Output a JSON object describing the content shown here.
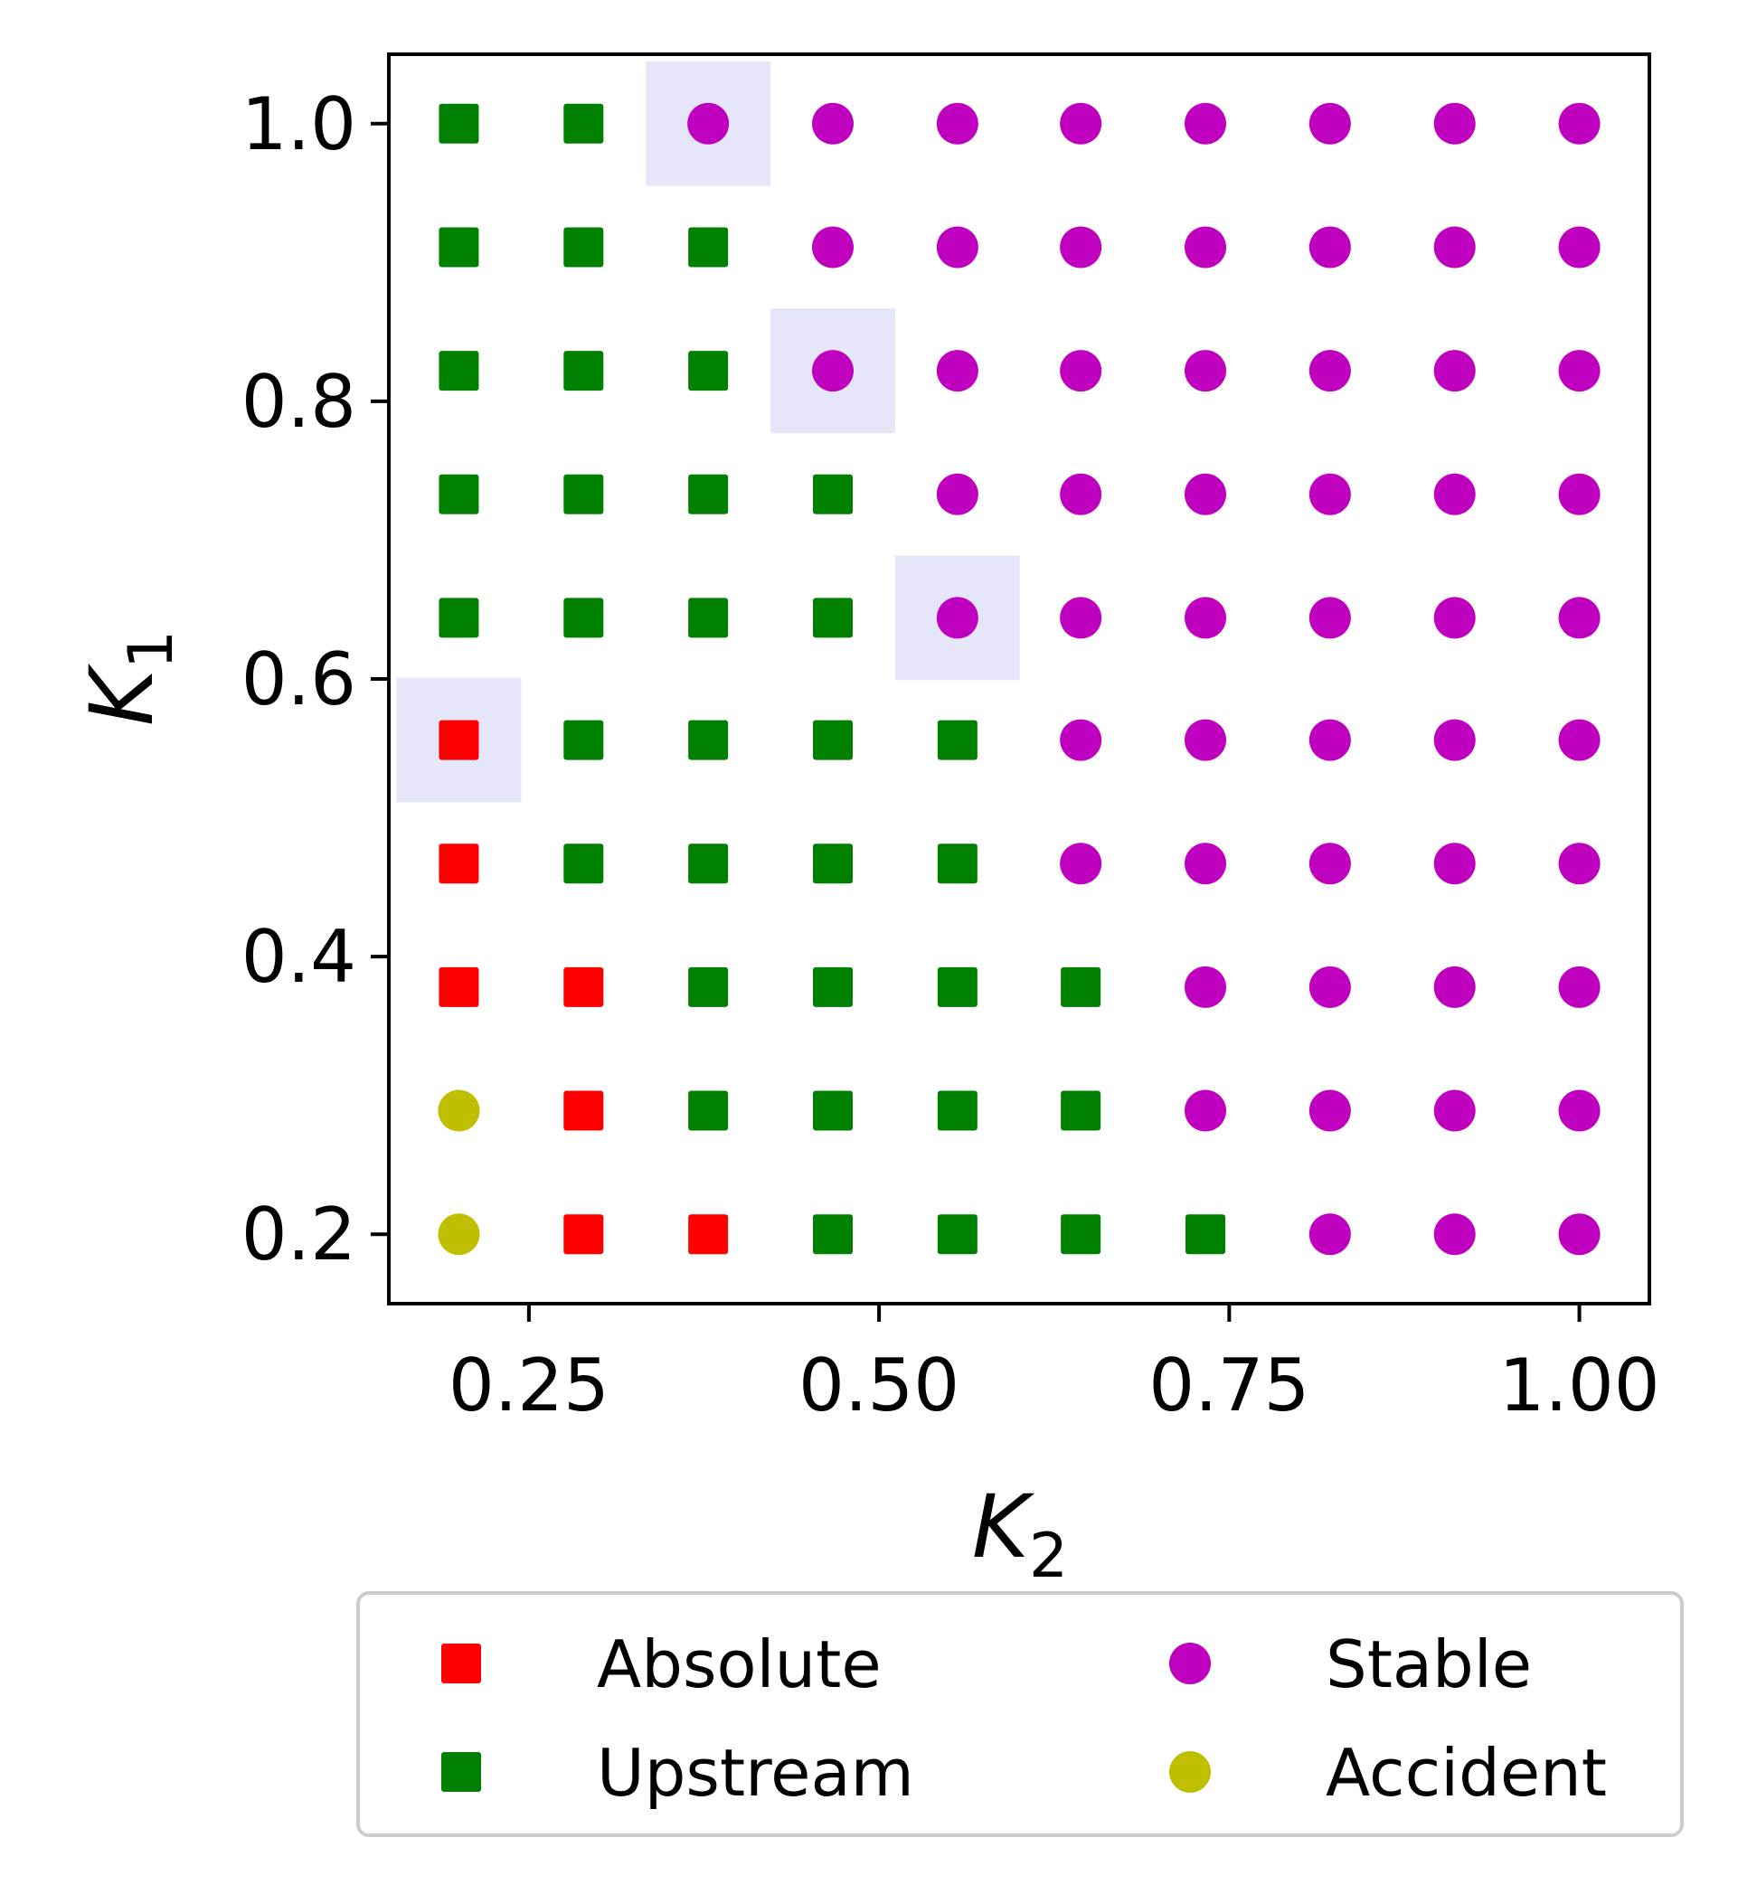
{
  "chart_data": {
    "type": "scatter",
    "xlabel": {
      "main": "K",
      "sub": "2"
    },
    "ylabel": {
      "main": "K",
      "sub": "1"
    },
    "xlim": [
      0.15,
      1.05
    ],
    "ylim": [
      0.15,
      1.05
    ],
    "xticks": [
      0.25,
      0.5,
      0.75,
      1.0
    ],
    "xtick_labels": [
      "0.25",
      "0.50",
      "0.75",
      "1.00"
    ],
    "yticks": [
      0.2,
      0.4,
      0.6,
      0.8,
      1.0
    ],
    "ytick_labels": [
      "0.2",
      "0.4",
      "0.6",
      "0.8",
      "1.0"
    ],
    "grid": false,
    "legend_position": "below",
    "grid_values": [
      0.2,
      0.289,
      0.378,
      0.467,
      0.556,
      0.644,
      0.733,
      0.822,
      0.911,
      1.0
    ],
    "series": [
      {
        "name": "Absolute",
        "marker": "square",
        "color": "#ff0000"
      },
      {
        "name": "Upstream",
        "marker": "square",
        "color": "#008000"
      },
      {
        "name": "Stable",
        "marker": "circle",
        "color": "#bf00bf"
      },
      {
        "name": "Accident",
        "marker": "circle",
        "color": "#bfbf00"
      }
    ],
    "classification_rows_top_to_bottom": [
      "UUSSSSSSSS",
      "UUUSSSSSSS",
      "UUUSSSSSSS",
      "UUUUSSSSSS",
      "UUUUSSSSSS",
      "AUUUUSSSSS",
      "AUUUUSSSSS",
      "AAUUUUSSSS",
      "CAUUUUSSSS",
      "CAAUUUUSSS"
    ],
    "classification_codes": {
      "A": "Absolute",
      "U": "Upstream",
      "S": "Stable",
      "C": "Accident"
    },
    "highlighted_points": [
      {
        "x": 0.378,
        "y": 1.0
      },
      {
        "x": 0.467,
        "y": 0.822
      },
      {
        "x": 0.556,
        "y": 0.644
      },
      {
        "x": 0.2,
        "y": 0.556
      }
    ],
    "highlight_color": "#e6e6fa"
  }
}
